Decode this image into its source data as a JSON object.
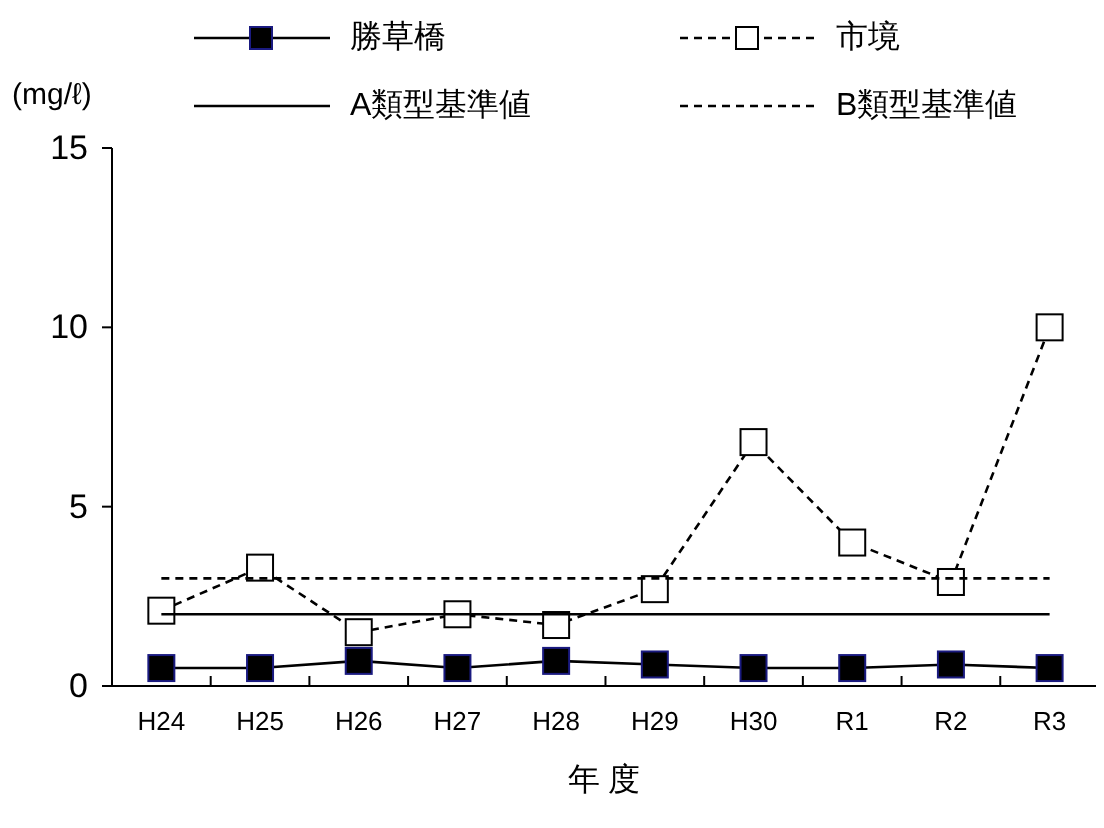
{
  "chart_data": {
    "type": "line",
    "xlabel": "年 度",
    "ylabel": "(mg/ℓ)",
    "categories": [
      "H24",
      "H25",
      "H26",
      "H27",
      "H28",
      "H29",
      "H30",
      "R1",
      "R2",
      "R3"
    ],
    "series": [
      {
        "name": "勝草橋",
        "color": "#000000",
        "marker": "square",
        "line_style": "solid",
        "values": [
          0.5,
          0.5,
          0.7,
          0.5,
          0.7,
          0.6,
          0.5,
          0.5,
          0.6,
          0.5
        ]
      },
      {
        "name": "市境",
        "color": "#000000",
        "marker": "square",
        "line_style": "dashed",
        "values": [
          2.1,
          3.3,
          1.5,
          2.0,
          1.7,
          2.7,
          6.8,
          4.0,
          2.9,
          10
        ]
      },
      {
        "name": "A類型基準値",
        "color": "#000000",
        "marker": "none",
        "line_style": "solid",
        "values": [
          2,
          2,
          2,
          2,
          2,
          2,
          2,
          2,
          2,
          2
        ]
      },
      {
        "name": "B類型基準値",
        "color": "#000000",
        "marker": "none",
        "line_style": "dashed",
        "values": [
          3,
          3,
          3,
          3,
          3,
          3,
          3,
          3,
          3,
          3
        ]
      }
    ],
    "ylim": [
      0,
      15
    ],
    "yticks": [
      0,
      5,
      10,
      15
    ],
    "grid": false,
    "legend": "top"
  }
}
